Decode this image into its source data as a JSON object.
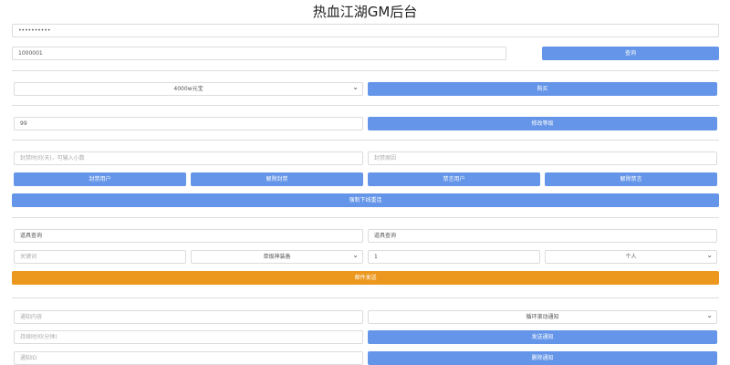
{
  "title": "热血江湖GM后台",
  "password_value": "••••••••••",
  "user_id_value": "1000001",
  "query_button": "查询",
  "item_select": "4000w元宝",
  "buy_button": "购买",
  "level_value": "99",
  "level_button": "修改等级",
  "ban_time_placeholder": "封禁时间(天)，可输入小数",
  "ban_reason_placeholder": "封禁原因",
  "ban_button": "封禁用户",
  "unban_button": "解除封禁",
  "mute_button": "禁言用户",
  "unmute_button": "解除禁言",
  "kick_button": "强制下线重连",
  "mail_title_placeholder": "道具查询",
  "mail_content_placeholder": "道具查询",
  "keyword_placeholder": "关键词",
  "mail_type_select": "单级神装备",
  "quantity_value": "1",
  "target_select": "个人",
  "mail_send_button": "邮件发送",
  "notice_content_placeholder": "通知内容",
  "notice_type_select": "循环滚动通知",
  "duration_placeholder": "持续时间(分钟)",
  "send_notice_button": "发送通知",
  "notice_id_placeholder": "通知ID",
  "delete_notice_button": "删除通知",
  "colors": {
    "primary": "#6495e8",
    "warning": "#ec981f"
  }
}
